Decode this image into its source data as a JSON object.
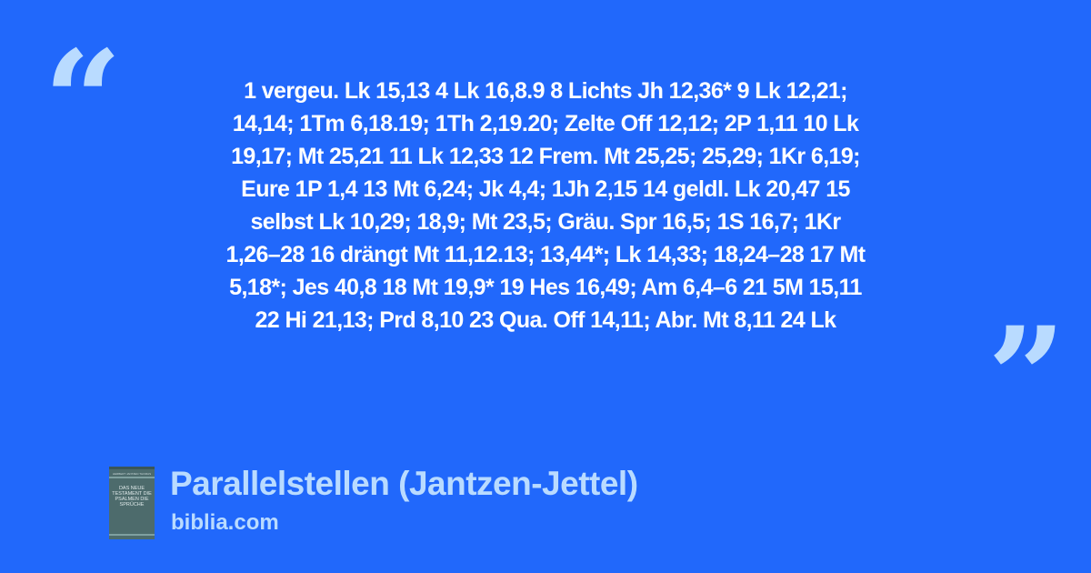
{
  "quote": {
    "open_mark": "“",
    "close_mark": "”",
    "lines": [
      "1 vergeu. Lk 15,13 4 Lk 16,8.9 8 Lichts Jh 12,36* 9 Lk 12,21;",
      "14,14; 1Tm 6,18.19; 1Th 2,19.20; Zelte Off 12,12; 2P 1,11 10 Lk",
      "19,17; Mt 25,21 11 Lk 12,33 12 Frem. Mt 25,25; 25,29; 1Kr 6,19;",
      "Eure 1P 1,4 13 Mt 6,24; Jk 4,4; 1Jh 2,15 14 geldl. Lk 20,47 15",
      "selbst Lk 10,29; 18,9; Mt 23,5; Gräu. Spr 16,5; 1S 16,7; 1Kr",
      "1,26–28 16 drängt Mt 11,12.13; 13,44*; Lk 14,33; 18,24–28 17 Mt",
      "5,18*; Jes 40,8 18 Mt 19,9* 19 Hes 16,49; Am 6,4–6 21 5M 15,11",
      "22 Hi 21,13; Prd 8,10 23 Qua. Off 14,11; Abr. Mt 8,11 24 Lk"
    ]
  },
  "source": {
    "title": "Parallelstellen (Jantzen-Jettel)",
    "site": "biblia.com",
    "cover": {
      "authors": "HERBERT JANTZEN THOMAS JETTEL",
      "title": "DAS NEUE TESTAMENT DIE PSALMEN DIE SPRÜCHE"
    }
  },
  "colors": {
    "background": "#2168fb",
    "text": "#ffffff",
    "accent": "#b9dbff"
  }
}
